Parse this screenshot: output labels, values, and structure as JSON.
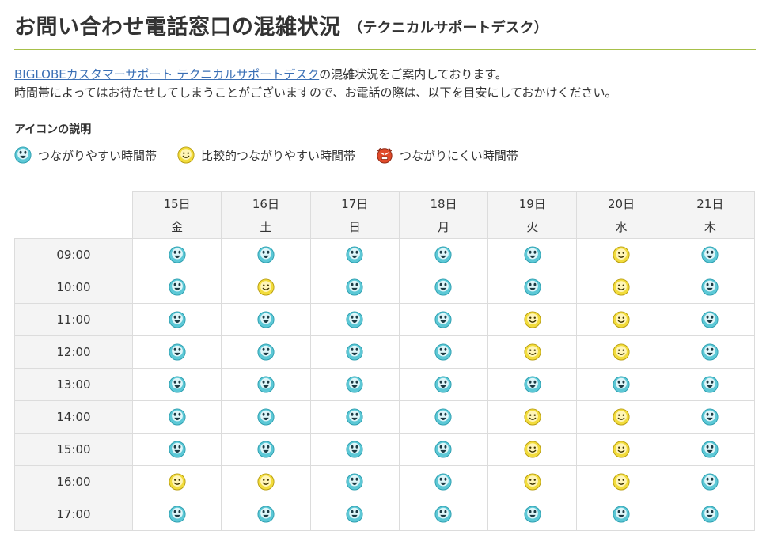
{
  "page": {
    "title": "お問い合わせ電話窓口の混雑状況",
    "subtitle": "（テクニカルサポートデスク）"
  },
  "intro": {
    "link_text": "BIGLOBEカスタマーサポート テクニカルサポートデスク",
    "line1_rest": "の混雑状況をご案内しております。",
    "line2": "時間帯によってはお待たせしてしまうことがございますので、お電話の際は、以下を目安にしておかけください。"
  },
  "legend": {
    "title": "アイコンの説明",
    "items": [
      {
        "icon": "easy-face-icon",
        "label": "つながりやすい時間帯"
      },
      {
        "icon": "fair-face-icon",
        "label": "比較的つながりやすい時間帯"
      },
      {
        "icon": "busy-face-icon",
        "label": "つながりにくい時間帯"
      }
    ]
  },
  "colors": {
    "accent_line": "#a7c04a",
    "link": "#3a6fb5",
    "easy_icon": "#5cc8d6",
    "fair_icon": "#f2dc3c",
    "busy_icon": "#e04a2a"
  },
  "schedule": {
    "days": [
      {
        "date": "15日",
        "dow": "金"
      },
      {
        "date": "16日",
        "dow": "土"
      },
      {
        "date": "17日",
        "dow": "日"
      },
      {
        "date": "18日",
        "dow": "月"
      },
      {
        "date": "19日",
        "dow": "火"
      },
      {
        "date": "20日",
        "dow": "水"
      },
      {
        "date": "21日",
        "dow": "木"
      }
    ],
    "rows": [
      {
        "time": "09:00",
        "status": [
          "easy",
          "easy",
          "easy",
          "easy",
          "easy",
          "fair",
          "easy"
        ]
      },
      {
        "time": "10:00",
        "status": [
          "easy",
          "fair",
          "easy",
          "easy",
          "easy",
          "fair",
          "easy"
        ]
      },
      {
        "time": "11:00",
        "status": [
          "easy",
          "easy",
          "easy",
          "easy",
          "fair",
          "fair",
          "easy"
        ]
      },
      {
        "time": "12:00",
        "status": [
          "easy",
          "easy",
          "easy",
          "easy",
          "fair",
          "fair",
          "easy"
        ]
      },
      {
        "time": "13:00",
        "status": [
          "easy",
          "easy",
          "easy",
          "easy",
          "easy",
          "easy",
          "easy"
        ]
      },
      {
        "time": "14:00",
        "status": [
          "easy",
          "easy",
          "easy",
          "easy",
          "fair",
          "fair",
          "easy"
        ]
      },
      {
        "time": "15:00",
        "status": [
          "easy",
          "easy",
          "easy",
          "easy",
          "fair",
          "fair",
          "easy"
        ]
      },
      {
        "time": "16:00",
        "status": [
          "fair",
          "fair",
          "easy",
          "easy",
          "fair",
          "fair",
          "easy"
        ]
      },
      {
        "time": "17:00",
        "status": [
          "easy",
          "easy",
          "easy",
          "easy",
          "easy",
          "easy",
          "easy"
        ]
      }
    ]
  }
}
